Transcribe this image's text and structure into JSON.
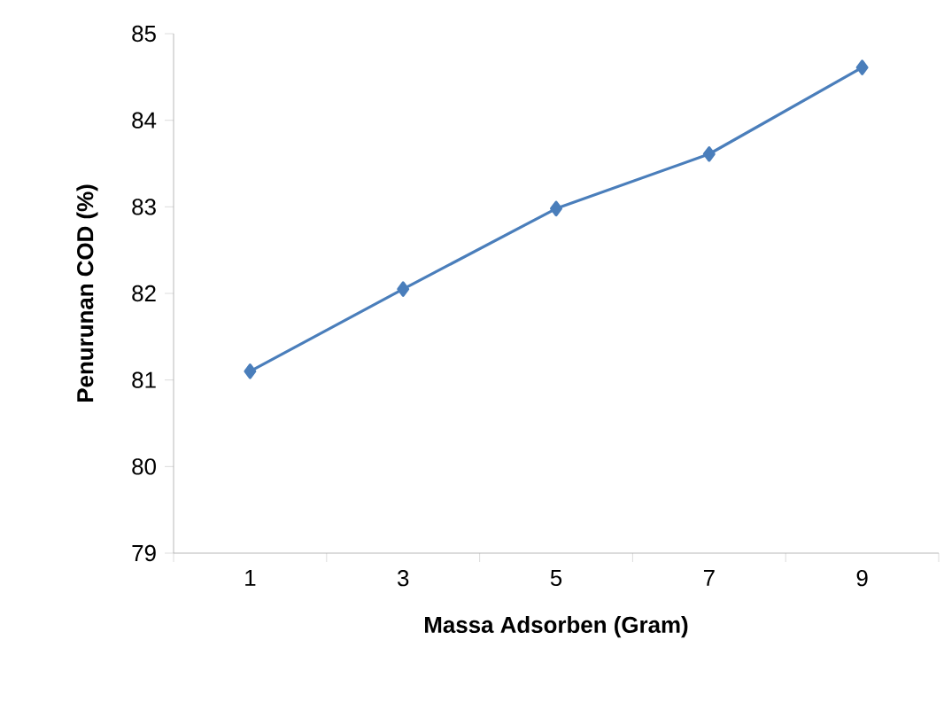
{
  "chart_data": {
    "type": "line",
    "xlabel": "Massa Adsorben (Gram)",
    "ylabel": "Penurunan COD (%)",
    "categories": [
      "1",
      "3",
      "5",
      "7",
      "9"
    ],
    "series": [
      {
        "color": "#4a7ebb",
        "values": [
          81.1,
          82.05,
          82.98,
          83.61,
          84.61
        ]
      }
    ],
    "ylim": [
      79,
      85
    ],
    "yticks": [
      79,
      80,
      81,
      82,
      83,
      84,
      85
    ],
    "marker": "diamond",
    "line_style": "solid"
  }
}
